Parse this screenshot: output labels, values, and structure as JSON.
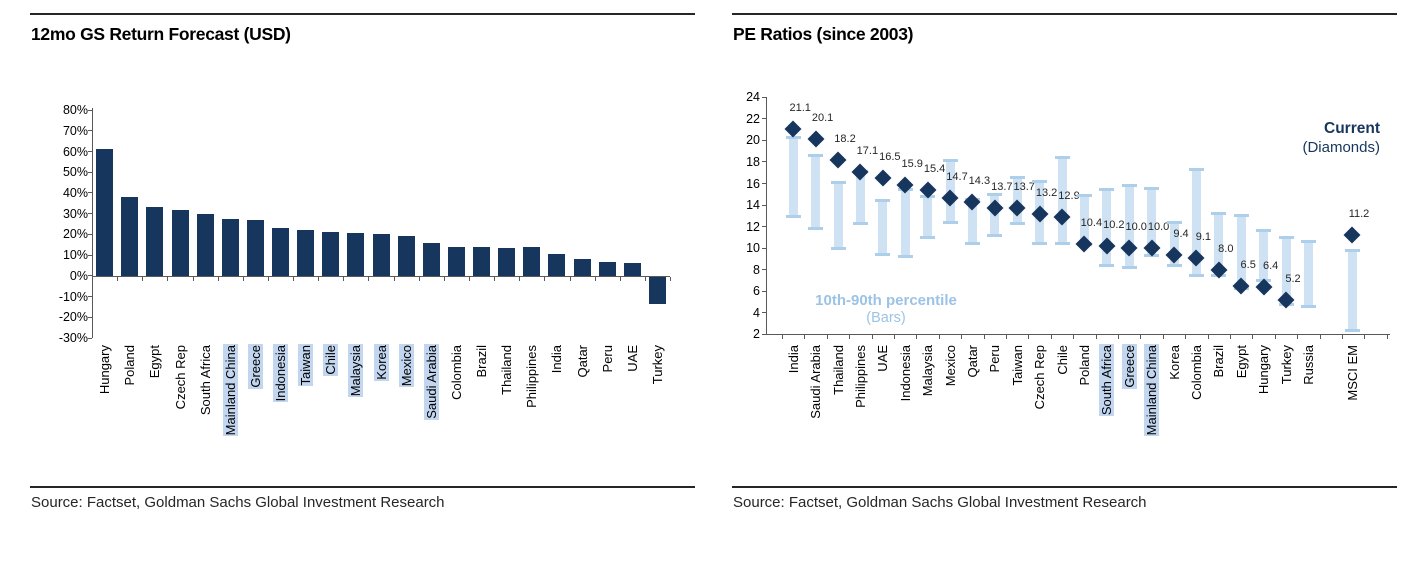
{
  "colors": {
    "navy": "#17365D",
    "range_bar_body": "#C9DFF2",
    "range_bar_cap": "#AECFEA",
    "highlight_bg": "#C2D6F0",
    "legend_light_blue": "#9CC3E5",
    "axis_line": "#595959",
    "rule_line": "#262626"
  },
  "panels": [
    {
      "title": "12mo GS Return Forecast (USD)",
      "source": "Source: Factset, Goldman Sachs Global Investment Research",
      "chart_data": {
        "type": "bar",
        "title": "12mo GS Return Forecast (USD)",
        "xlabel": "",
        "ylabel": "",
        "ylim": [
          -30,
          80
        ],
        "ytick_step": 10,
        "ytick_suffix": "%",
        "grid": false,
        "bar_color": "#17365D",
        "categories": [
          "Hungary",
          "Poland",
          "Egypt",
          "Czech Rep",
          "South Africa",
          "Mainland China",
          "Greece",
          "Indonesia",
          "Taiwan",
          "Chile",
          "Malaysia",
          "Korea",
          "Mexico",
          "Saudi Arabia",
          "Colombia",
          "Brazil",
          "Thailand",
          "Philippines",
          "India",
          "Qatar",
          "Peru",
          "UAE",
          "Turkey"
        ],
        "values": [
          61,
          38,
          33,
          32,
          30,
          27.5,
          27,
          23,
          22,
          21,
          20.5,
          20,
          19,
          16,
          14,
          14,
          13.5,
          14,
          10.5,
          8,
          6.5,
          6,
          -13
        ],
        "highlighted_categories": [
          "Mainland China",
          "Greece",
          "Indonesia",
          "Taiwan",
          "Chile",
          "Malaysia",
          "Korea",
          "Mexico",
          "Saudi Arabia"
        ]
      }
    },
    {
      "title": "PE Ratios (since 2003)",
      "source": "Source: Factset, Goldman Sachs Global Investment Research",
      "legend": {
        "current_label": "Current",
        "current_sub": "(Diamonds)",
        "range_label": "10th-90th percentile",
        "range_sub": "(Bars)"
      },
      "chart_data": {
        "type": "scatter",
        "title": "PE Ratios (since 2003)",
        "xlabel": "",
        "ylabel": "",
        "ylim": [
          2,
          24
        ],
        "ytick_step": 2,
        "grid": false,
        "legend_position": "current top-right, percentile lower-left",
        "categories": [
          "India",
          "Saudi Arabia",
          "Thailand",
          "Philippines",
          "UAE",
          "Indonesia",
          "Malaysia",
          "Mexico",
          "Qatar",
          "Peru",
          "Taiwan",
          "Czech Rep",
          "Chile",
          "Poland",
          "South Africa",
          "Greece",
          "Mainland China",
          "Korea",
          "Colombia",
          "Brazil",
          "Egypt",
          "Hungary",
          "Turkey",
          "Russia",
          "MSCI EM"
        ],
        "series": [
          {
            "name": "Current (Diamonds)",
            "marker": "diamond",
            "values": [
              21.1,
              20.1,
              18.2,
              17.1,
              16.5,
              15.9,
              15.4,
              14.7,
              14.3,
              13.7,
              13.7,
              13.2,
              12.9,
              10.4,
              10.2,
              10.0,
              10.0,
              9.4,
              9.1,
              8.0,
              6.5,
              6.4,
              5.2,
              null,
              11.2
            ]
          },
          {
            "name": "10th-90th percentile (Bars)",
            "marker": "range-bar",
            "low": [
              12.9,
              11.8,
              10.0,
              12.3,
              9.4,
              9.2,
              11.0,
              12.4,
              10.4,
              11.2,
              12.3,
              10.4,
              10.4,
              10.3,
              8.4,
              8.2,
              9.3,
              8.4,
              7.5,
              7.5,
              6.3,
              7.0,
              4.8,
              4.6,
              2.4
            ],
            "high": [
              20.3,
              18.6,
              16.1,
              17.1,
              14.4,
              15.4,
              14.8,
              18.1,
              14.5,
              15.0,
              16.6,
              16.2,
              18.4,
              14.9,
              15.4,
              15.8,
              15.5,
              12.4,
              17.3,
              13.2,
              13.0,
              11.6,
              11.0,
              10.6,
              9.8
            ]
          }
        ],
        "value_label_decimals": 1,
        "highlighted_categories": [
          "South Africa",
          "Greece",
          "Mainland China"
        ]
      }
    }
  ]
}
